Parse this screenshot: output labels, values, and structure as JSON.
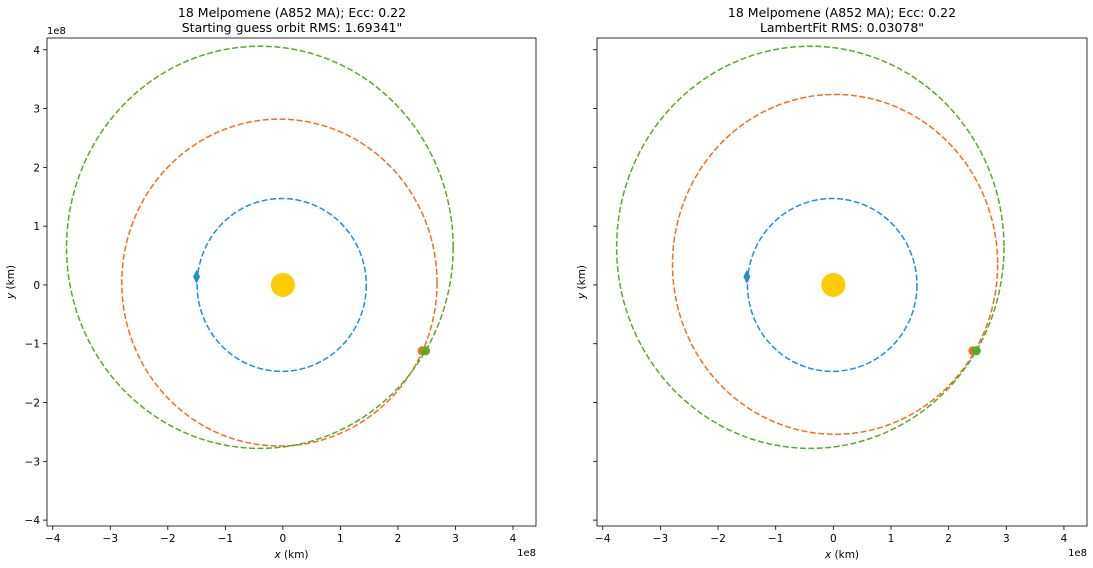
{
  "chart_data": [
    {
      "type": "scatter",
      "title": "18 Melpomene (A852 MA); Ecc: 0.22",
      "subtitle": "Starting guess orbit RMS: 1.69341\"",
      "xlabel_var": "x",
      "xlabel_unit": " (km)",
      "ylabel_var": "y",
      "ylabel_unit": " (km)",
      "x_offset_label": "1e8",
      "y_offset_label": "1e8",
      "xlim": [
        -4.1,
        4.4
      ],
      "ylim": [
        -4.1,
        4.2
      ],
      "xticks": [
        -4,
        -3,
        -2,
        -1,
        0,
        1,
        2,
        3,
        4
      ],
      "yticks": [
        -4,
        -3,
        -2,
        -1,
        0,
        1,
        2,
        3,
        4
      ],
      "show_yticklabels": true,
      "sun": {
        "x": 0,
        "y": 0,
        "color": "#ffcc00"
      },
      "orbits": [
        {
          "color": "#1f8fd6",
          "cx": -0.02,
          "cy": 0.0,
          "a": 1.47,
          "b": 1.47,
          "marker": {
            "x": -1.5,
            "y": 0.14,
            "shape": "diamond"
          }
        },
        {
          "color": "#f07020",
          "cx": -0.06,
          "cy": 0.04,
          "a": 2.74,
          "b": 2.78,
          "marker": {
            "x": 2.42,
            "y": -1.12,
            "shape": "circle"
          }
        },
        {
          "color": "#5aaa2a",
          "cx": -0.4,
          "cy": 0.64,
          "a": 3.36,
          "b": 3.42,
          "marker": {
            "x": 2.48,
            "y": -1.12,
            "shape": "circle"
          }
        }
      ]
    },
    {
      "type": "scatter",
      "title": "18 Melpomene (A852 MA); Ecc: 0.22",
      "subtitle": "LambertFit RMS: 0.03078\"",
      "xlabel_var": "x",
      "xlabel_unit": " (km)",
      "ylabel_var": "y",
      "ylabel_unit": " (km)",
      "x_offset_label": "1e8",
      "y_offset_label": "",
      "xlim": [
        -4.1,
        4.4
      ],
      "ylim": [
        -4.1,
        4.2
      ],
      "xticks": [
        -4,
        -3,
        -2,
        -1,
        0,
        1,
        2,
        3,
        4
      ],
      "yticks": [
        -4,
        -3,
        -2,
        -1,
        0,
        1,
        2,
        3,
        4
      ],
      "show_yticklabels": false,
      "sun": {
        "x": 0,
        "y": 0,
        "color": "#ffcc00"
      },
      "orbits": [
        {
          "color": "#1f8fd6",
          "cx": -0.02,
          "cy": 0.0,
          "a": 1.47,
          "b": 1.47,
          "marker": {
            "x": -1.5,
            "y": 0.14,
            "shape": "diamond"
          }
        },
        {
          "color": "#f07020",
          "cx": 0.03,
          "cy": 0.35,
          "a": 2.82,
          "b": 2.89,
          "marker": {
            "x": 2.42,
            "y": -1.12,
            "shape": "circle"
          }
        },
        {
          "color": "#5aaa2a",
          "cx": -0.4,
          "cy": 0.64,
          "a": 3.36,
          "b": 3.42,
          "marker": {
            "x": 2.48,
            "y": -1.12,
            "shape": "circle"
          }
        }
      ]
    }
  ]
}
